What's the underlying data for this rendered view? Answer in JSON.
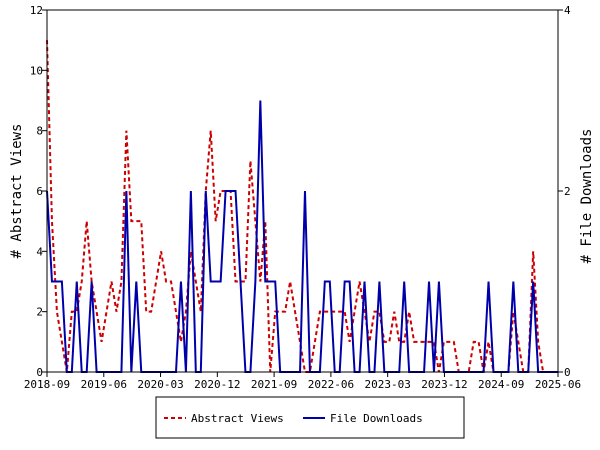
{
  "chart_data": {
    "type": "line",
    "x_tick_labels": [
      "2018-09",
      "2019-06",
      "2020-03",
      "2020-12",
      "2021-09",
      "2022-06",
      "2023-03",
      "2023-12",
      "2024-09",
      "2025-06"
    ],
    "y_left": {
      "label": "# Abstract Views",
      "range": [
        0,
        12
      ],
      "ticks": [
        0,
        2,
        4,
        6,
        8,
        10,
        12
      ]
    },
    "y_right": {
      "label": "# File Downloads",
      "range": [
        0,
        4
      ],
      "ticks": [
        0,
        2,
        4
      ]
    },
    "grid": false,
    "legend_position": "bottom",
    "series": [
      {
        "name": "Abstract Views",
        "axis": "left",
        "color": "#cc0000",
        "style": "dashed",
        "values": [
          11,
          5,
          2,
          1,
          0,
          2,
          2,
          3,
          5,
          3,
          2,
          1,
          2,
          3,
          2,
          3,
          8,
          5,
          5,
          5,
          2,
          2,
          3,
          4,
          3,
          3,
          2,
          1,
          2,
          4,
          3,
          2,
          6,
          8,
          5,
          6,
          6,
          6,
          3,
          3,
          3,
          7,
          5,
          3,
          5,
          0,
          2,
          2,
          2,
          3,
          2,
          1,
          0,
          0,
          1,
          2,
          2,
          2,
          2,
          2,
          2,
          1,
          2,
          3,
          2,
          1,
          2,
          2,
          1,
          1,
          2,
          1,
          1,
          2,
          1,
          1,
          1,
          1,
          1,
          0,
          1,
          1,
          1,
          0,
          0,
          0,
          1,
          1,
          0,
          1,
          0,
          0,
          0,
          0,
          2,
          1,
          0,
          0,
          4,
          1,
          0,
          0,
          0,
          0
        ]
      },
      {
        "name": "File Downloads",
        "axis": "right",
        "color": "#0000aa",
        "style": "solid",
        "values": [
          2,
          1,
          1,
          1,
          0,
          0,
          1,
          0,
          0,
          1,
          0,
          0,
          0,
          0,
          0,
          0,
          2,
          0,
          1,
          0,
          0,
          0,
          0,
          0,
          0,
          0,
          0,
          1,
          0,
          2,
          0,
          0,
          2,
          1,
          1,
          1,
          2,
          2,
          2,
          1,
          0,
          0,
          1,
          3,
          1,
          1,
          1,
          0,
          0,
          0,
          0,
          0,
          2,
          0,
          0,
          0,
          1,
          1,
          0,
          0,
          1,
          1,
          0,
          0,
          1,
          0,
          0,
          1,
          0,
          0,
          0,
          0,
          1,
          0,
          0,
          0,
          0,
          1,
          0,
          1,
          0,
          0,
          0,
          0,
          0,
          0,
          0,
          0,
          0,
          1,
          0,
          0,
          0,
          0,
          1,
          0,
          0,
          0,
          1,
          0,
          0,
          0,
          0,
          0
        ]
      }
    ]
  }
}
